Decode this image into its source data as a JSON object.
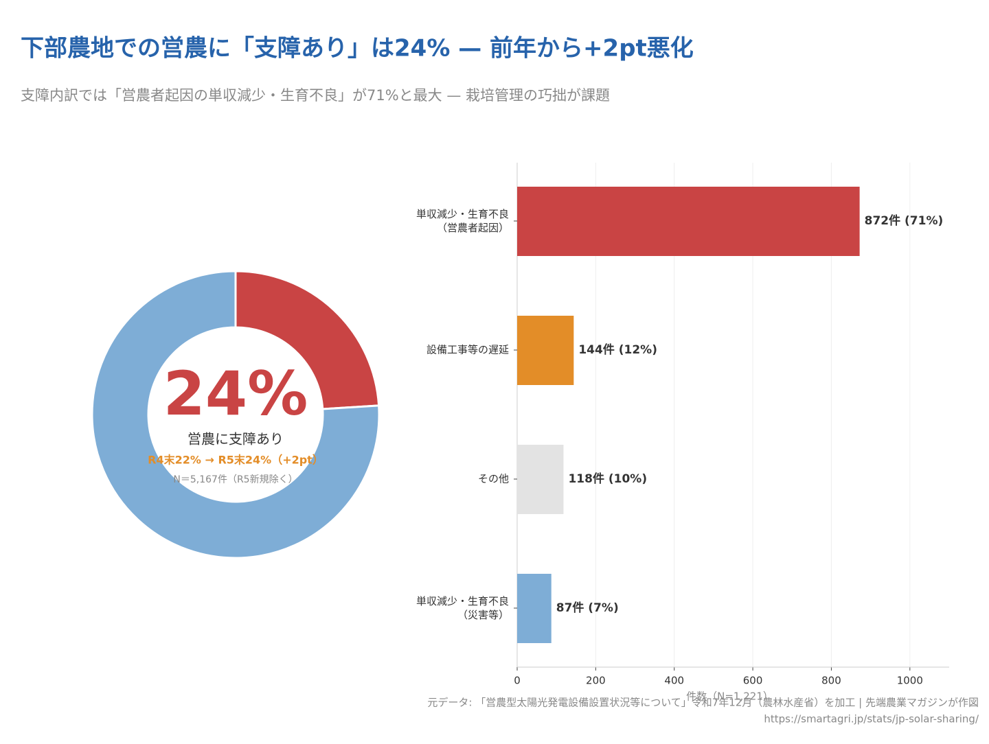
{
  "header": {
    "title": "下部農地での営農に「支障あり」は24% — 前年から+2pt悪化",
    "subtitle": "支障内訳では「営農者起因の単収減少・生育不良」が71%と最大 — 栽培管理の巧拙が課題"
  },
  "footer": {
    "source": "元データ: 「営農型太陽光発電設備設置状況等について」令和7年12月（農林水産省）を加工 | 先端農業マガジンが作図",
    "url": "https://smartagri.jp/stats/jp-solar-sharing/"
  },
  "chart_data": [
    {
      "type": "donut",
      "values": [
        24,
        76
      ],
      "colors": [
        "#c94444",
        "#7eadd6"
      ],
      "center_text": "24%",
      "center_caption": "営農に支障あり",
      "change_note": "R4末22% → R5末24%（+2pt）",
      "sample_note": "N＝5,167件（R5新規除く）"
    },
    {
      "type": "hbar",
      "categories": [
        "単収減少・生育不良\n（営農者起因）",
        "設備工事等の遅延",
        "その他",
        "単収減少・生育不良\n（災害等）"
      ],
      "values": [
        872,
        144,
        118,
        87
      ],
      "value_labels": [
        "872件 (71%)",
        "144件 (12%)",
        "118件 (10%)",
        "87件 (7%)"
      ],
      "colors": [
        "#c94444",
        "#e38d28",
        "#e3e3e3",
        "#7eadd6"
      ],
      "xlim": [
        0,
        1100
      ],
      "xticks": [
        0,
        200,
        400,
        600,
        800,
        1000
      ],
      "xlabel": "件数（N=1,221）",
      "grid": true
    }
  ]
}
